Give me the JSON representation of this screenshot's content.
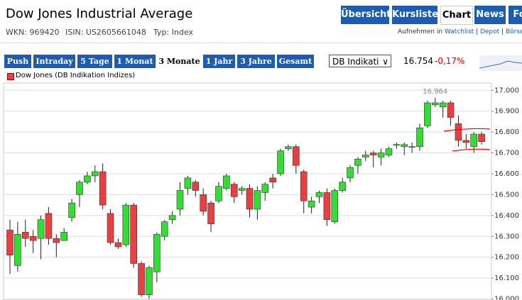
{
  "header": {
    "title": "Dow Jones Industrial Average",
    "meta": [
      "WKN: 969420",
      "ISIN: US2605661048",
      "Typ: Index"
    ],
    "tabs": [
      "Übersicht",
      "Kursliste",
      "Chart",
      "News",
      "Fo"
    ],
    "active_tab": "Chart",
    "links": [
      "Aufnehmen in",
      "Watchlist",
      "Depot",
      "Börse"
    ]
  },
  "toolbar": {
    "ranges": [
      "Push",
      "Intraday",
      "5 Tage",
      "1 Monat",
      "3 Monate",
      "1 Jahr",
      "3 Jahre",
      "Gesamt"
    ],
    "active_range": "3 Monate",
    "select": "DB Indikati",
    "price": "16.754",
    "change": "-0,17%"
  },
  "chart_data": {
    "type": "candlestick",
    "legend_position": "top-left",
    "grid": true,
    "ylim": [
      15995,
      17035
    ],
    "yticks": [
      {
        "value": 16000,
        "label": "16.000"
      },
      {
        "value": 16100,
        "label": "16.100"
      },
      {
        "value": 16200,
        "label": "16.200"
      },
      {
        "value": 16300,
        "label": "16.300"
      },
      {
        "value": 16400,
        "label": "16.400"
      },
      {
        "value": 16500,
        "label": "16.500"
      },
      {
        "value": 16600,
        "label": "16.600"
      },
      {
        "value": 16700,
        "label": "16.700"
      },
      {
        "value": 16800,
        "label": "16.800"
      },
      {
        "value": 16900,
        "label": "16.900"
      },
      {
        "value": 17000,
        "label": "17.000"
      }
    ],
    "annotations": [
      {
        "value": 16964,
        "label": "16.964"
      }
    ],
    "series": [
      {
        "name": "Dow Jones (DB Indikation Indizes)",
        "color": "#e84040",
        "up_color": "#33dd33",
        "open": [
          16330,
          16160,
          16320,
          16300,
          16290,
          16410,
          16290,
          16280,
          16390,
          16500,
          16560,
          16590,
          16610,
          16410,
          16270,
          16260,
          16450,
          16170,
          16020,
          16130,
          16300,
          16380,
          16430,
          16530,
          16560,
          16500,
          16460,
          16470,
          16530,
          16550,
          16520,
          16530,
          16430,
          16510,
          16580,
          16600,
          16720,
          16730,
          16610,
          16440,
          16490,
          16510,
          16370,
          16520,
          16580,
          16640,
          16680,
          16700,
          16680,
          16690,
          16740,
          16730,
          16730,
          16730,
          16830,
          16930,
          16920,
          16940,
          16840,
          16760,
          16730,
          16790
        ],
        "high": [
          16380,
          16370,
          16380,
          16330,
          16400,
          16440,
          16310,
          16340,
          16480,
          16570,
          16610,
          16640,
          16650,
          16430,
          16290,
          16460,
          16460,
          16180,
          16160,
          16320,
          16380,
          16420,
          16560,
          16590,
          16570,
          16530,
          16470,
          16560,
          16600,
          16560,
          16540,
          16550,
          16540,
          16560,
          16600,
          16720,
          16740,
          16740,
          16620,
          16490,
          16520,
          16530,
          16530,
          16580,
          16640,
          16680,
          16710,
          16710,
          16720,
          16730,
          16750,
          16750,
          16750,
          16840,
          16950,
          16964,
          16950,
          16950,
          16880,
          16790,
          16800,
          16800
        ],
        "low": [
          16120,
          16130,
          16250,
          16220,
          16190,
          16260,
          16200,
          16280,
          16370,
          16440,
          16550,
          16560,
          16430,
          16260,
          16240,
          16250,
          16150,
          16010,
          16000,
          16080,
          16280,
          16360,
          16400,
          16500,
          16490,
          16400,
          16320,
          16460,
          16520,
          16460,
          16500,
          16390,
          16380,
          16470,
          16530,
          16590,
          16710,
          16600,
          16410,
          16410,
          16460,
          16350,
          16360,
          16510,
          16560,
          16600,
          16660,
          16630,
          16640,
          16680,
          16720,
          16690,
          16700,
          16710,
          16820,
          16920,
          16870,
          16830,
          16730,
          16720,
          16700,
          16740
        ],
        "close": [
          16210,
          16310,
          16290,
          16280,
          16380,
          16290,
          16270,
          16320,
          16460,
          16560,
          16590,
          16610,
          16450,
          16270,
          16250,
          16450,
          16170,
          16020,
          16150,
          16310,
          16370,
          16400,
          16520,
          16580,
          16520,
          16420,
          16360,
          16540,
          16590,
          16490,
          16530,
          16430,
          16520,
          16550,
          16560,
          16710,
          16730,
          16640,
          16470,
          16470,
          16510,
          16380,
          16520,
          16560,
          16630,
          16670,
          16690,
          16690,
          16700,
          16720,
          16740,
          16740,
          16730,
          16820,
          16940,
          16940,
          16940,
          16870,
          16760,
          16750,
          16790,
          16754
        ]
      }
    ]
  }
}
